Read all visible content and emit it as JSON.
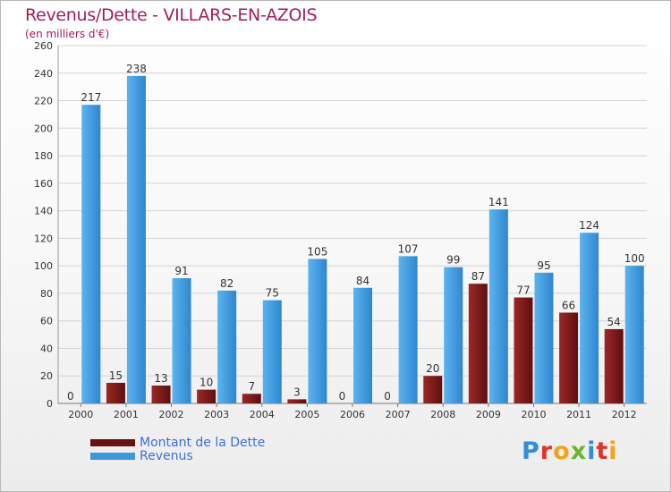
{
  "chart_data": {
    "type": "bar",
    "title": "Revenus/Dette - VILLARS-EN-AZOIS",
    "subtitle": "(en milliers d'€)",
    "categories": [
      "2000",
      "2001",
      "2002",
      "2003",
      "2004",
      "2005",
      "2006",
      "2007",
      "2008",
      "2009",
      "2010",
      "2011",
      "2012"
    ],
    "series": [
      {
        "name": "Montant de la Dette",
        "color": "#7a1a1a",
        "values": [
          0,
          15,
          13,
          10,
          7,
          3,
          0,
          0,
          20,
          87,
          77,
          66,
          54
        ]
      },
      {
        "name": "Revenus",
        "color": "#3d97dc",
        "values": [
          217,
          238,
          91,
          82,
          75,
          105,
          84,
          107,
          99,
          141,
          95,
          124,
          100
        ]
      }
    ],
    "ylim": [
      0,
      260
    ],
    "yticks": [
      0,
      20,
      40,
      60,
      80,
      100,
      120,
      140,
      160,
      180,
      200,
      220,
      240,
      260
    ],
    "grid": true,
    "legend": "bottom-left"
  },
  "logo": [
    "P",
    "r",
    "o",
    "x",
    "i",
    "t",
    "i"
  ]
}
